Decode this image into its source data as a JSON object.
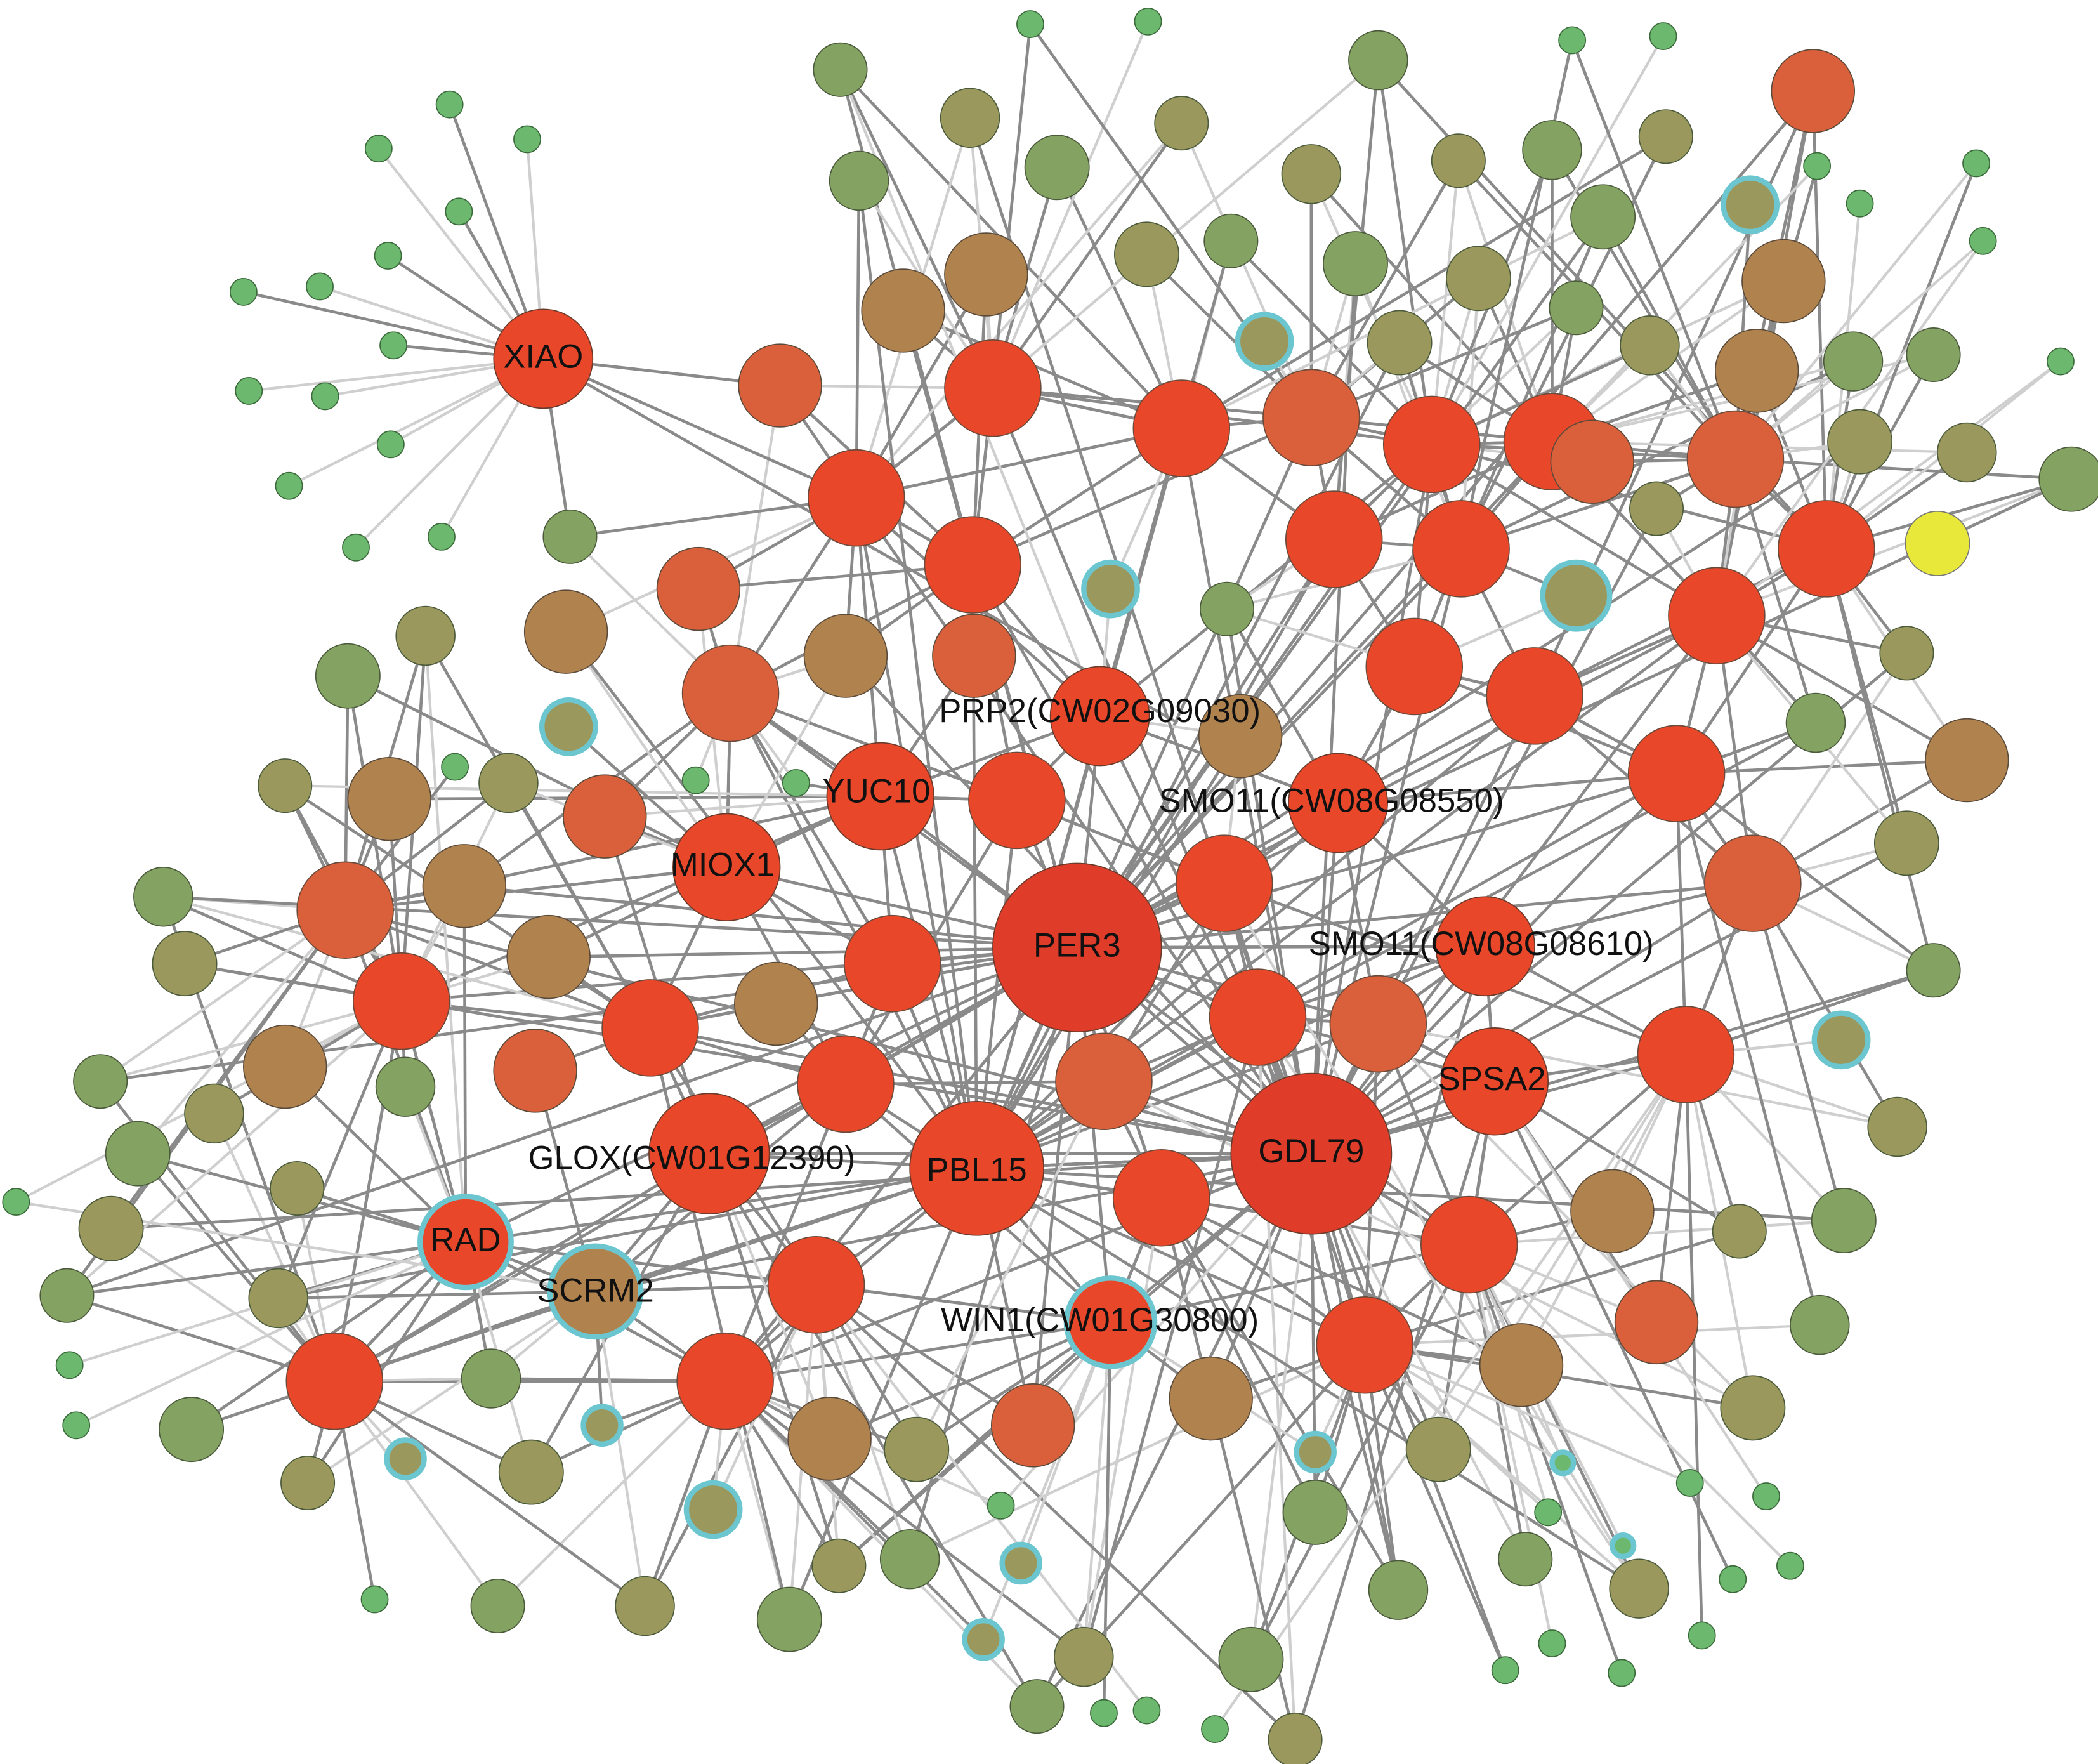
{
  "nodes": [
    {
      "label": "XIAO"
    },
    {
      "label": "PRP2(CW02G09030)"
    },
    {
      "label": "YUC10"
    },
    {
      "label": "SMO11(CW08G08550)"
    },
    {
      "label": "MIOX1"
    },
    {
      "label": "PER3"
    },
    {
      "label": "SMO11(CW08G08610)"
    },
    {
      "label": "SPSA2"
    },
    {
      "label": "GLOX(CW01G12390)"
    },
    {
      "label": "PBL15"
    },
    {
      "label": "GDL79"
    },
    {
      "label": "RAD"
    },
    {
      "label": "SCRM2"
    },
    {
      "label": "WIN1(CW01G30800)"
    }
  ]
}
